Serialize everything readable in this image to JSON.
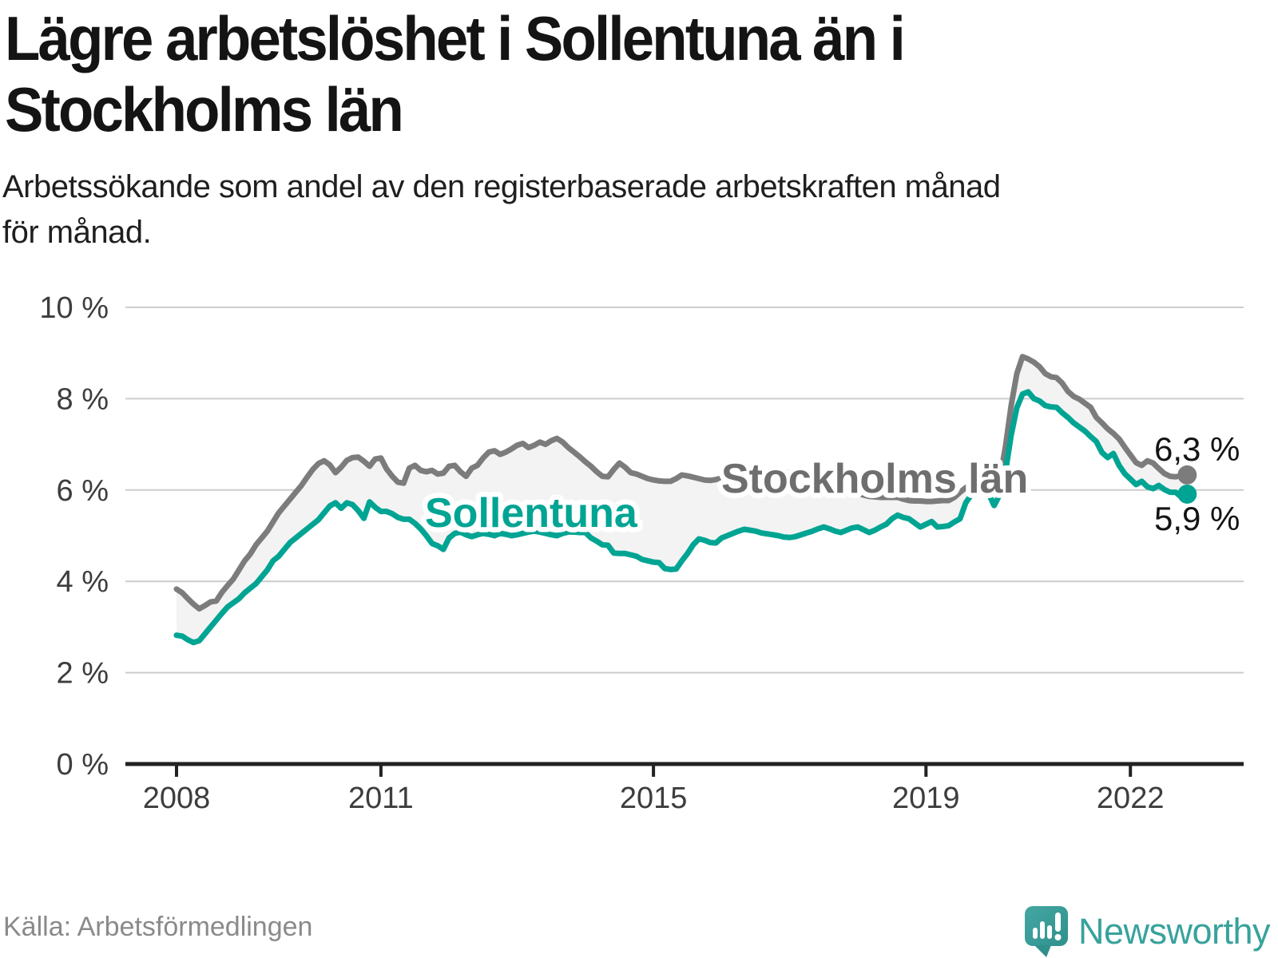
{
  "header": {
    "title_lines": [
      "Lägre arbetslöshet i Sollentuna än i",
      "Stockholms län"
    ],
    "subtitle_lines": [
      "Arbetssökande som andel av den registerbaserade arbetskraften månad",
      "för månad."
    ]
  },
  "footer": {
    "source": "Källa: Arbetsförmedlingen",
    "logo_text": "Newsworthy",
    "logo_icon": "bar-chart-speech-bubble-icon",
    "logo_color": "#3aa29c"
  },
  "chart_data": {
    "type": "line",
    "x_start": {
      "year": 2008,
      "month": 1
    },
    "frequency": "monthly",
    "x_tick_years": [
      2008,
      2011,
      2015,
      2019,
      2022
    ],
    "y_ticks": [
      {
        "value": 0,
        "label": "0 %"
      },
      {
        "value": 2,
        "label": "2 %"
      },
      {
        "value": 4,
        "label": "4 %"
      },
      {
        "value": 6,
        "label": "6 %"
      },
      {
        "value": 8,
        "label": "8 %"
      },
      {
        "value": 10,
        "label": "10 %"
      }
    ],
    "ylim": [
      0,
      10
    ],
    "grid": "horizontal",
    "band_fill_between_series": true,
    "colors": {
      "band": "#f3f3f3",
      "grid": "#cccccc",
      "axis": "#222222",
      "tick_label": "#3d3d3d",
      "end_label": "#141414"
    },
    "series": [
      {
        "name": "Stockholms län",
        "color": "#7c7c7c",
        "label_color": "#6e6e6e",
        "end_label": "6,3 %",
        "end_value": 6.3,
        "values": [
          3.83,
          3.75,
          3.62,
          3.5,
          3.4,
          3.47,
          3.55,
          3.57,
          3.76,
          3.91,
          4.05,
          4.25,
          4.45,
          4.6,
          4.8,
          4.95,
          5.1,
          5.3,
          5.5,
          5.65,
          5.8,
          5.95,
          6.1,
          6.28,
          6.45,
          6.58,
          6.64,
          6.55,
          6.38,
          6.5,
          6.65,
          6.71,
          6.72,
          6.63,
          6.52,
          6.68,
          6.7,
          6.46,
          6.3,
          6.17,
          6.15,
          6.48,
          6.54,
          6.43,
          6.4,
          6.43,
          6.35,
          6.37,
          6.52,
          6.54,
          6.4,
          6.3,
          6.48,
          6.54,
          6.7,
          6.83,
          6.86,
          6.78,
          6.83,
          6.9,
          6.98,
          7.02,
          6.93,
          6.98,
          7.05,
          7.0,
          7.08,
          7.13,
          7.05,
          6.93,
          6.83,
          6.73,
          6.62,
          6.52,
          6.4,
          6.3,
          6.29,
          6.45,
          6.59,
          6.5,
          6.38,
          6.35,
          6.3,
          6.25,
          6.22,
          6.2,
          6.19,
          6.19,
          6.25,
          6.33,
          6.31,
          6.28,
          6.25,
          6.22,
          6.21,
          6.23,
          6.26,
          6.29,
          6.31,
          6.33,
          6.35,
          6.36,
          6.38,
          6.38,
          6.37,
          6.37,
          6.38,
          6.38,
          6.38,
          6.37,
          6.35,
          6.32,
          6.28,
          6.25,
          6.2,
          6.15,
          6.1,
          6.05,
          6.0,
          5.95,
          5.92,
          5.89,
          5.86,
          5.85,
          5.84,
          5.84,
          5.84,
          5.84,
          5.8,
          5.77,
          5.76,
          5.76,
          5.75,
          5.75,
          5.76,
          5.77,
          5.77,
          5.84,
          5.95,
          6.05,
          6.12,
          6.15,
          6.15,
          6.07,
          6.03,
          6.25,
          6.95,
          7.85,
          8.55,
          8.92,
          8.87,
          8.8,
          8.7,
          8.55,
          8.48,
          8.46,
          8.34,
          8.16,
          8.05,
          7.99,
          7.9,
          7.81,
          7.59,
          7.47,
          7.34,
          7.24,
          7.12,
          6.94,
          6.77,
          6.6,
          6.54,
          6.64,
          6.59,
          6.47,
          6.36,
          6.3,
          6.29,
          6.31,
          6.33
        ]
      },
      {
        "name": "Sollentuna",
        "color": "#00a493",
        "label_color": "#00a493",
        "end_label": "5,9 %",
        "end_value": 5.9,
        "values": [
          2.82,
          2.8,
          2.72,
          2.66,
          2.7,
          2.85,
          3.0,
          3.15,
          3.3,
          3.44,
          3.53,
          3.62,
          3.75,
          3.85,
          3.95,
          4.1,
          4.25,
          4.45,
          4.55,
          4.7,
          4.85,
          4.95,
          5.05,
          5.15,
          5.25,
          5.35,
          5.5,
          5.65,
          5.72,
          5.6,
          5.72,
          5.68,
          5.55,
          5.38,
          5.74,
          5.62,
          5.53,
          5.53,
          5.48,
          5.4,
          5.36,
          5.36,
          5.27,
          5.15,
          5.0,
          4.83,
          4.78,
          4.7,
          4.95,
          5.05,
          5.08,
          5.02,
          4.98,
          5.02,
          5.05,
          5.03,
          5.0,
          5.05,
          5.03,
          5.0,
          5.02,
          5.05,
          5.08,
          5.1,
          5.08,
          5.05,
          5.02,
          5.0,
          5.05,
          5.08,
          5.08,
          5.07,
          5.07,
          4.95,
          4.88,
          4.8,
          4.79,
          4.62,
          4.61,
          4.61,
          4.58,
          4.55,
          4.48,
          4.45,
          4.42,
          4.41,
          4.28,
          4.26,
          4.27,
          4.45,
          4.61,
          4.8,
          4.93,
          4.9,
          4.85,
          4.84,
          4.95,
          5.0,
          5.05,
          5.1,
          5.14,
          5.12,
          5.1,
          5.06,
          5.04,
          5.02,
          5.0,
          4.97,
          4.96,
          4.98,
          5.02,
          5.06,
          5.1,
          5.15,
          5.19,
          5.15,
          5.1,
          5.07,
          5.12,
          5.17,
          5.19,
          5.13,
          5.07,
          5.12,
          5.19,
          5.25,
          5.37,
          5.45,
          5.4,
          5.37,
          5.28,
          5.19,
          5.25,
          5.31,
          5.19,
          5.2,
          5.22,
          5.3,
          5.37,
          5.72,
          5.9,
          6.0,
          6.07,
          5.93,
          5.66,
          5.9,
          6.4,
          7.2,
          7.8,
          8.1,
          8.15,
          8.0,
          7.95,
          7.85,
          7.82,
          7.81,
          7.69,
          7.59,
          7.47,
          7.38,
          7.29,
          7.17,
          7.06,
          6.82,
          6.71,
          6.8,
          6.54,
          6.36,
          6.24,
          6.12,
          6.19,
          6.07,
          6.03,
          6.1,
          6.01,
          5.95,
          5.95,
          5.84,
          5.91
        ]
      }
    ]
  }
}
